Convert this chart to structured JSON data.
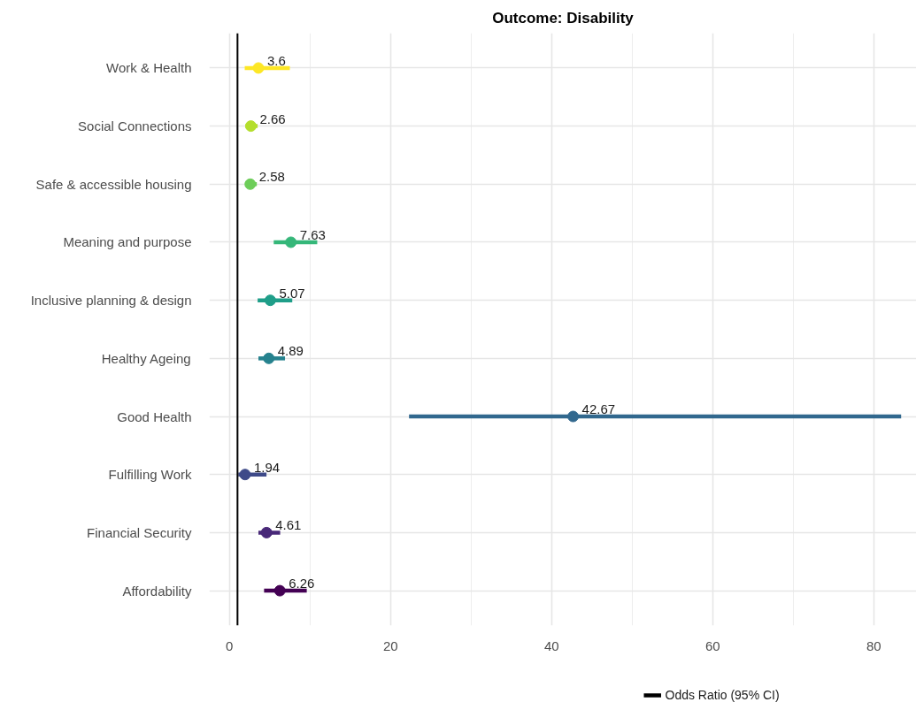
{
  "chart_data": {
    "type": "scatter",
    "title": "Outcome: Disability",
    "orientation": "horizontal",
    "categories": [
      "Work & Health",
      "Social Connections",
      "Safe & accessible housing",
      "Meaning and purpose",
      "Inclusive planning & design",
      "Healthy Ageing",
      "Good Health",
      "Fulfilling Work",
      "Financial Security",
      "Affordability"
    ],
    "series": [
      {
        "name": "Odds Ratio (95% CI)",
        "color": "#000000",
        "colors": [
          "#fde725",
          "#b4de2c",
          "#6dcd59",
          "#35b779",
          "#1f9e89",
          "#26828e",
          "#31688e",
          "#3e4a89",
          "#482878",
          "#440154"
        ],
        "values": [
          3.6,
          2.66,
          2.58,
          7.63,
          5.07,
          4.89,
          42.67,
          1.94,
          4.61,
          6.26
        ],
        "errors": [
          [
            1.9,
            7.5
          ],
          [
            2.0,
            3.5
          ],
          [
            2.0,
            3.4
          ],
          [
            5.5,
            10.9
          ],
          [
            3.5,
            7.8
          ],
          [
            3.6,
            6.9
          ],
          [
            22.3,
            83.4
          ],
          [
            1.1,
            4.6
          ],
          [
            3.6,
            6.3
          ],
          [
            4.3,
            9.6
          ]
        ]
      }
    ],
    "xlim": [
      -2.5,
      85.3
    ],
    "xticks": [
      0,
      20,
      40,
      60,
      80
    ],
    "ref_lines": [
      {
        "axis": "x",
        "value": 1,
        "color": "#000000"
      }
    ],
    "data_labels": true,
    "grid": true,
    "legend": "bottom",
    "marker": "circle"
  }
}
